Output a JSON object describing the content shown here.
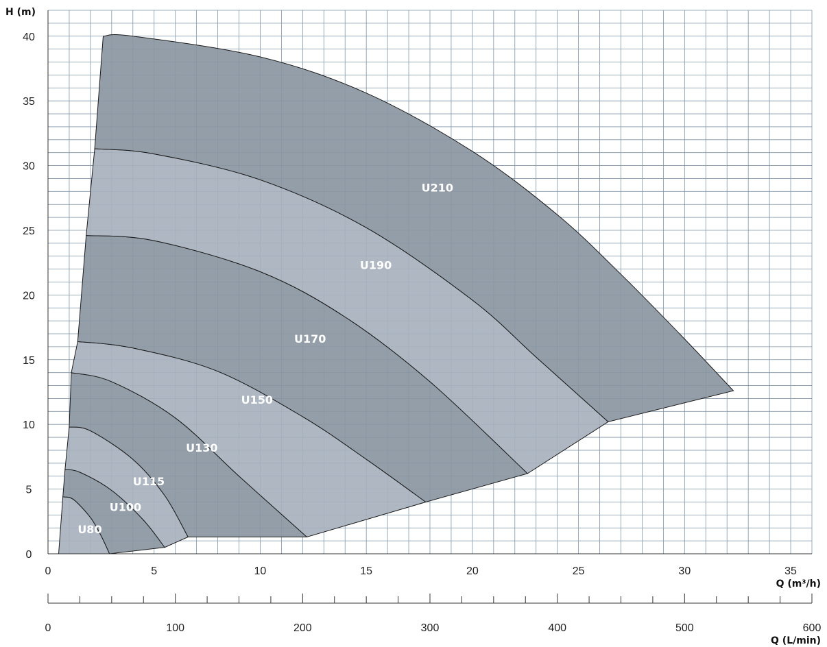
{
  "chart_data": {
    "type": "area",
    "y_axis": {
      "label": "H (m)",
      "range": [
        0,
        42
      ],
      "ticks": [
        0,
        5,
        10,
        15,
        20,
        25,
        30,
        35,
        40
      ],
      "minor_step": 1
    },
    "x_axis": {
      "label": "Q (m³/h)",
      "range": [
        0,
        36
      ],
      "ticks": [
        0,
        5,
        10,
        15,
        20,
        25,
        30,
        35
      ],
      "minor_step": 1
    },
    "x2_axis": {
      "label": "Q (L/min)",
      "range": [
        0,
        600
      ],
      "ticks": [
        0,
        100,
        200,
        300,
        400,
        500,
        600
      ],
      "minor_step": 25
    },
    "grid": true,
    "colors": {
      "dark": "#8a96a2",
      "light": "#a7b1bd",
      "grid": "#7f93a7",
      "line": "#1a1a1a"
    },
    "series": [
      {
        "name": "U80",
        "label_at": [
          1.4,
          1.6
        ],
        "curve": [
          [
            0.7,
            4.4
          ],
          [
            1.2,
            4.2
          ],
          [
            2.0,
            2.8
          ],
          [
            2.5,
            1.4
          ],
          [
            2.9,
            0.0
          ]
        ]
      },
      {
        "name": "U100",
        "label_at": [
          2.9,
          3.3
        ],
        "curve": [
          [
            0.8,
            6.5
          ],
          [
            1.5,
            6.3
          ],
          [
            3.0,
            4.9
          ],
          [
            4.5,
            2.6
          ],
          [
            5.5,
            0.5
          ]
        ]
      },
      {
        "name": "U115",
        "label_at": [
          4.0,
          5.3
        ],
        "curve": [
          [
            1.0,
            9.8
          ],
          [
            2.0,
            9.5
          ],
          [
            4.0,
            7.3
          ],
          [
            5.5,
            4.5
          ],
          [
            6.6,
            1.3
          ]
        ]
      },
      {
        "name": "U130",
        "label_at": [
          6.5,
          7.9
        ],
        "curve": [
          [
            1.1,
            14.0
          ],
          [
            3.0,
            13.3
          ],
          [
            6.0,
            10.5
          ],
          [
            9.0,
            6.0
          ],
          [
            12.2,
            1.3
          ]
        ]
      },
      {
        "name": "U150",
        "label_at": [
          9.1,
          11.6
        ],
        "curve": [
          [
            1.4,
            16.4
          ],
          [
            4.0,
            15.9
          ],
          [
            8.0,
            14.1
          ],
          [
            12.0,
            10.6
          ],
          [
            15.0,
            7.3
          ],
          [
            17.8,
            4.0
          ]
        ]
      },
      {
        "name": "U170",
        "label_at": [
          11.6,
          16.3
        ],
        "curve": [
          [
            1.8,
            24.6
          ],
          [
            5.0,
            24.2
          ],
          [
            10.0,
            21.8
          ],
          [
            14.0,
            18.3
          ],
          [
            18.0,
            13.3
          ],
          [
            22.6,
            6.2
          ]
        ]
      },
      {
        "name": "U190",
        "label_at": [
          14.7,
          22.0
        ],
        "curve": [
          [
            2.2,
            31.3
          ],
          [
            5.0,
            30.9
          ],
          [
            10.0,
            28.9
          ],
          [
            15.0,
            25.2
          ],
          [
            20.0,
            19.6
          ],
          [
            23.0,
            15.2
          ],
          [
            26.4,
            10.2
          ]
        ]
      },
      {
        "name": "U210",
        "label_at": [
          17.6,
          28.0
        ],
        "curve": [
          [
            2.6,
            40.0
          ],
          [
            4.0,
            40.0
          ],
          [
            10.0,
            38.4
          ],
          [
            15.0,
            35.6
          ],
          [
            20.0,
            31.1
          ],
          [
            24.0,
            26.2
          ],
          [
            27.0,
            21.6
          ],
          [
            30.0,
            16.6
          ],
          [
            32.3,
            12.6
          ]
        ]
      }
    ]
  }
}
